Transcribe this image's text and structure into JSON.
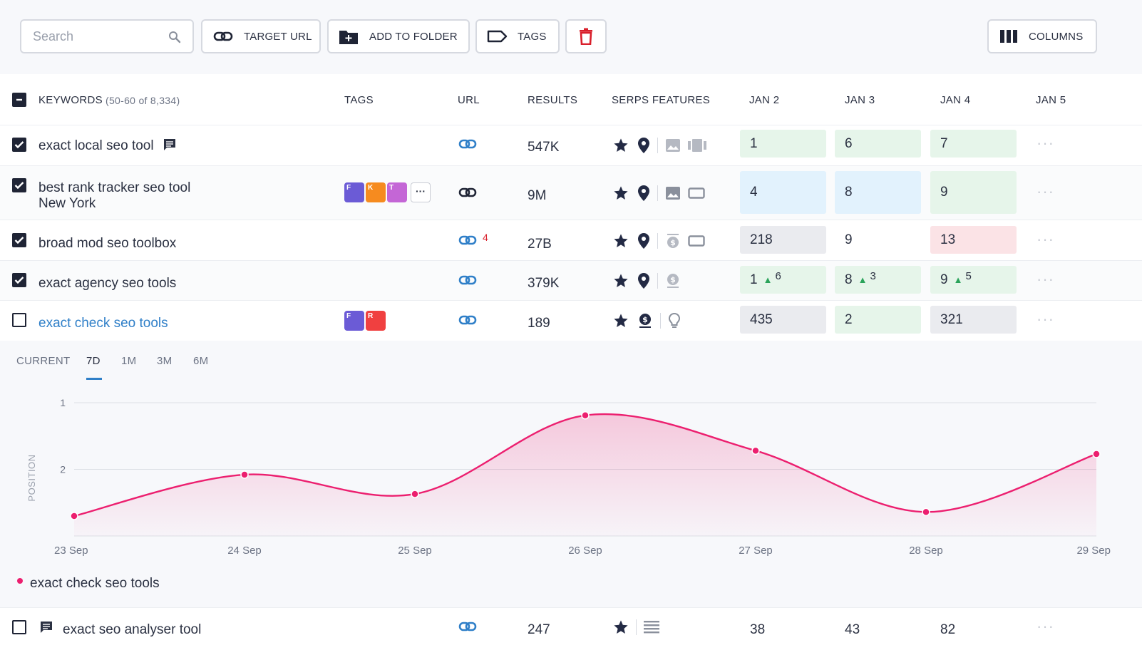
{
  "toolbar": {
    "search_placeholder": "Search",
    "target_url_label": "TARGET URL",
    "add_to_folder_label": "ADD TO FOLDER",
    "tags_label": "TAGS",
    "columns_label": "COLUMNS"
  },
  "table": {
    "headers": {
      "keywords": "KEYWORDS",
      "count": "(50-60 of 8,334)",
      "tags": "TAGS",
      "url": "URL",
      "results": "RESULTS",
      "serps": "SERPS FEATURES",
      "jan2": "JAN 2",
      "jan3": "JAN 3",
      "jan4": "JAN 4",
      "jan5": "JAN 5"
    },
    "rows": [
      {
        "keyword": "exact local seo tool",
        "results": "547K",
        "jan2": "1",
        "jan3": "6",
        "jan4": "7"
      },
      {
        "keyword": "best rank tracker seo tool",
        "keyword2": "New York",
        "results": "9M",
        "jan2": "4",
        "jan3": "8",
        "jan4": "9",
        "tags": [
          "F",
          "K",
          "T"
        ]
      },
      {
        "keyword": "broad mod seo toolbox",
        "results": "27B",
        "url_count": "4",
        "jan2": "218",
        "jan3": "9",
        "jan4": "13"
      },
      {
        "keyword": "exact agency seo tools",
        "results": "379K",
        "jan2": "1",
        "jan2_delta": "6",
        "jan3": "8",
        "jan3_delta": "3",
        "jan4": "9",
        "jan4_delta": "5"
      },
      {
        "keyword": "exact check seo tools",
        "results": "189",
        "jan2": "435",
        "jan3": "2",
        "jan4": "321",
        "tags": [
          "F",
          "R"
        ]
      }
    ],
    "last_row": {
      "keyword": "exact seo analyser tool",
      "results": "247",
      "jan2": "38",
      "jan3": "43",
      "jan4": "82"
    }
  },
  "chart_tabs": [
    "CURRENT",
    "7D",
    "1M",
    "3M",
    "6M"
  ],
  "chart_tab_active": "7D",
  "colors": {
    "line": "#ec1f6f",
    "accent": "#2f7fc8"
  },
  "chart_data": {
    "type": "area",
    "x": [
      "23 Sep",
      "24 Sep",
      "25 Sep",
      "26 Sep",
      "27 Sep",
      "28 Sep",
      "29 Sep"
    ],
    "series": [
      {
        "name": "exact check seo tools",
        "values": [
          2.7,
          2.08,
          2.37,
          1.19,
          1.72,
          2.64,
          1.77
        ]
      }
    ],
    "ylabel": "POSITION",
    "yticks": [
      1,
      2
    ],
    "ylim": [
      1,
      3
    ],
    "inverted": true,
    "grid": true,
    "legend": "bottom-left"
  }
}
